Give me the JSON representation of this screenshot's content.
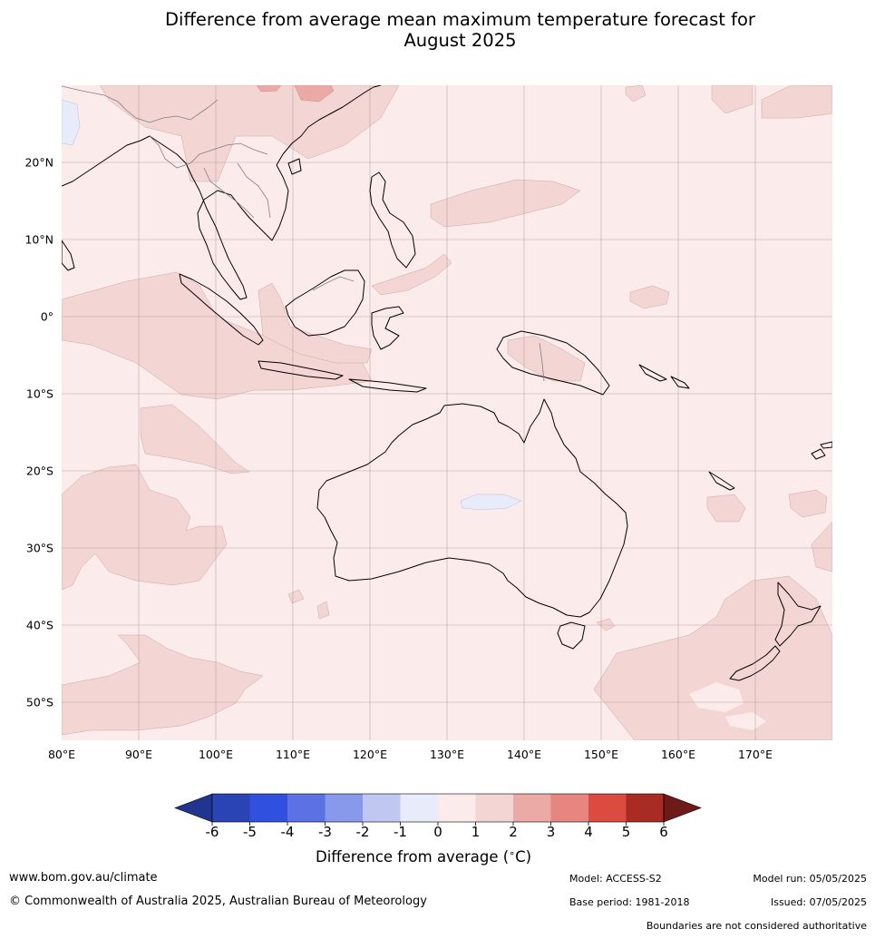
{
  "title_line1": "Difference from average mean maximum temperature forecast for",
  "title_line2": "August 2025",
  "map": {
    "lon_ticks": [
      "80°E",
      "90°E",
      "100°E",
      "110°E",
      "120°E",
      "130°E",
      "140°E",
      "150°E",
      "160°E",
      "170°E"
    ],
    "lat_ticks": [
      "20°N",
      "10°N",
      "0°",
      "10°S",
      "20°S",
      "30°S",
      "40°S",
      "50°S"
    ]
  },
  "colorbar": {
    "labels": [
      "-6",
      "-5",
      "-4",
      "-3",
      "-2",
      "-1",
      "0",
      "1",
      "2",
      "3",
      "4",
      "5",
      "6"
    ],
    "colors": [
      "#213590",
      "#2a44b6",
      "#3050e0",
      "#5c72e4",
      "#8898ea",
      "#c0c8f2",
      "#e8ecfa",
      "#fbeceb",
      "#f3d5d3",
      "#ebaaa6",
      "#e78680",
      "#dc4b40",
      "#a82c22",
      "#6e1a18"
    ],
    "title": "Difference from average ("
  },
  "footer": {
    "website": "www.bom.gov.au/climate",
    "copyright": "© Commonwealth of Australia 2025, Australian Bureau of Meteorology",
    "model": "Model: ACCESS-S2",
    "base_period": "Base period: 1981-2018",
    "model_run": "Model run: 05/05/2025",
    "issued": "Issued: 07/05/2025",
    "boundaries": "Boundaries are not considered authoritative"
  }
}
